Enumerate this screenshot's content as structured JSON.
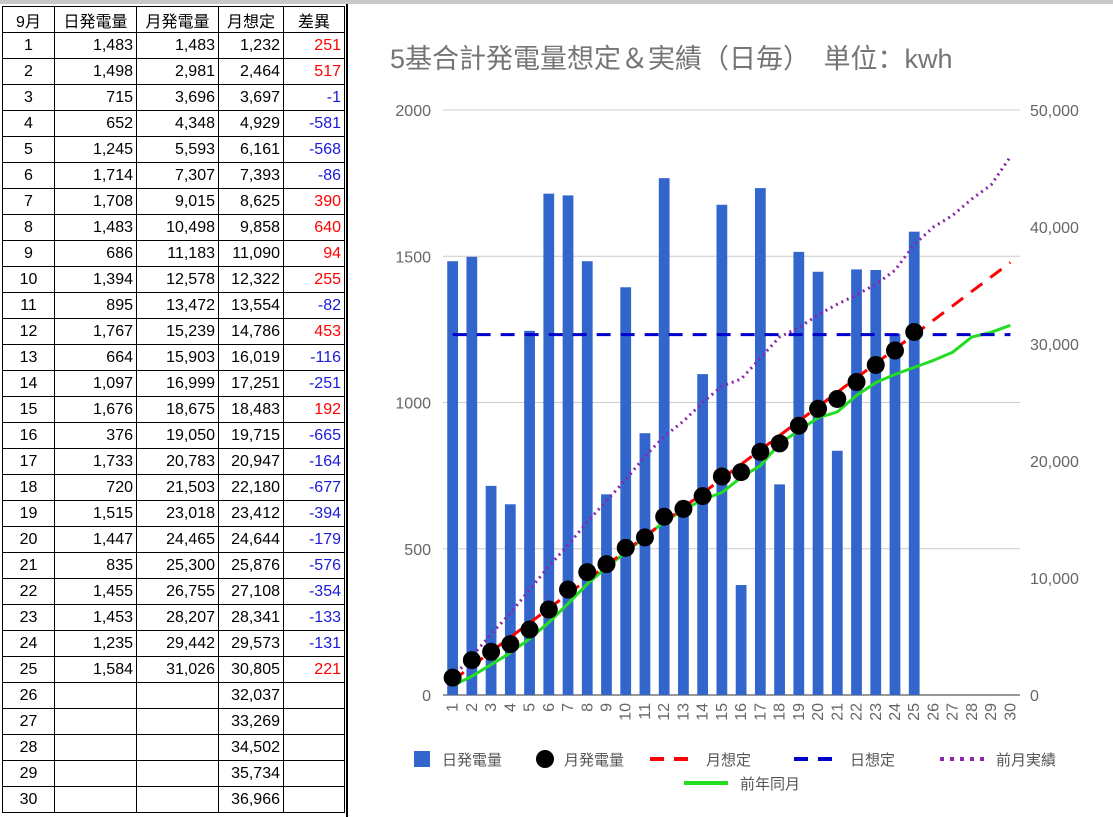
{
  "table": {
    "headers": [
      "9月",
      "日発電量",
      "月発電量",
      "月想定",
      "差異"
    ],
    "rows": [
      [
        "1",
        "1,483",
        "1,483",
        "1,232",
        "251"
      ],
      [
        "2",
        "1,498",
        "2,981",
        "2,464",
        "517"
      ],
      [
        "3",
        "715",
        "3,696",
        "3,697",
        "-1"
      ],
      [
        "4",
        "652",
        "4,348",
        "4,929",
        "-581"
      ],
      [
        "5",
        "1,245",
        "5,593",
        "6,161",
        "-568"
      ],
      [
        "6",
        "1,714",
        "7,307",
        "7,393",
        "-86"
      ],
      [
        "7",
        "1,708",
        "9,015",
        "8,625",
        "390"
      ],
      [
        "8",
        "1,483",
        "10,498",
        "9,858",
        "640"
      ],
      [
        "9",
        "686",
        "11,183",
        "11,090",
        "94"
      ],
      [
        "10",
        "1,394",
        "12,578",
        "12,322",
        "255"
      ],
      [
        "11",
        "895",
        "13,472",
        "13,554",
        "-82"
      ],
      [
        "12",
        "1,767",
        "15,239",
        "14,786",
        "453"
      ],
      [
        "13",
        "664",
        "15,903",
        "16,019",
        "-116"
      ],
      [
        "14",
        "1,097",
        "16,999",
        "17,251",
        "-251"
      ],
      [
        "15",
        "1,676",
        "18,675",
        "18,483",
        "192"
      ],
      [
        "16",
        "376",
        "19,050",
        "19,715",
        "-665"
      ],
      [
        "17",
        "1,733",
        "20,783",
        "20,947",
        "-164"
      ],
      [
        "18",
        "720",
        "21,503",
        "22,180",
        "-677"
      ],
      [
        "19",
        "1,515",
        "23,018",
        "23,412",
        "-394"
      ],
      [
        "20",
        "1,447",
        "24,465",
        "24,644",
        "-179"
      ],
      [
        "21",
        "835",
        "25,300",
        "25,876",
        "-576"
      ],
      [
        "22",
        "1,455",
        "26,755",
        "27,108",
        "-354"
      ],
      [
        "23",
        "1,453",
        "28,207",
        "28,341",
        "-133"
      ],
      [
        "24",
        "1,235",
        "29,442",
        "29,573",
        "-131"
      ],
      [
        "25",
        "1,584",
        "31,026",
        "30,805",
        "221"
      ],
      [
        "26",
        "",
        "",
        "32,037",
        ""
      ],
      [
        "27",
        "",
        "",
        "33,269",
        ""
      ],
      [
        "28",
        "",
        "",
        "34,502",
        ""
      ],
      [
        "29",
        "",
        "",
        "35,734",
        ""
      ],
      [
        "30",
        "",
        "",
        "36,966",
        ""
      ]
    ],
    "colors": {
      "positive": "#ff0000",
      "negative": "#1a1adb"
    }
  },
  "chart_data": {
    "type": "bar",
    "title": "5基合計発電量想定＆実績（日毎）　単位：kwh",
    "x": [
      1,
      2,
      3,
      4,
      5,
      6,
      7,
      8,
      9,
      10,
      11,
      12,
      13,
      14,
      15,
      16,
      17,
      18,
      19,
      20,
      21,
      22,
      23,
      24,
      25,
      26,
      27,
      28,
      29,
      30
    ],
    "left_axis": {
      "ylim": [
        0,
        2000
      ],
      "ticks": [
        "0",
        "500",
        "1000",
        "1500",
        "2000"
      ]
    },
    "right_axis": {
      "ylim": [
        0,
        50000
      ],
      "ticks": [
        "0",
        "10,000",
        "20,000",
        "30,000",
        "40,000",
        "50,000"
      ]
    },
    "grid": true,
    "legend_position": "bottom",
    "series": [
      {
        "name": "日発電量",
        "kind": "bar",
        "axis": "left",
        "color": "#3366cc",
        "values": [
          1483,
          1498,
          715,
          652,
          1245,
          1714,
          1708,
          1483,
          686,
          1394,
          895,
          1767,
          664,
          1097,
          1676,
          376,
          1733,
          720,
          1515,
          1447,
          835,
          1455,
          1453,
          1235,
          1584,
          null,
          null,
          null,
          null,
          null
        ]
      },
      {
        "name": "月発電量",
        "kind": "markers",
        "axis": "right",
        "color": "#000000",
        "values": [
          1483,
          2981,
          3696,
          4348,
          5593,
          7307,
          9015,
          10498,
          11183,
          12578,
          13472,
          15239,
          15903,
          16999,
          18675,
          19050,
          20783,
          21503,
          23018,
          24465,
          25300,
          26755,
          28207,
          29442,
          31026,
          null,
          null,
          null,
          null,
          null
        ]
      },
      {
        "name": "月想定",
        "kind": "dashed-line",
        "axis": "right",
        "color": "#ff0000",
        "values": [
          1232,
          2464,
          3697,
          4929,
          6161,
          7393,
          8625,
          9858,
          11090,
          12322,
          13554,
          14786,
          16019,
          17251,
          18483,
          19715,
          20947,
          22180,
          23412,
          24644,
          25876,
          27108,
          28341,
          29573,
          30805,
          32037,
          33269,
          34502,
          35734,
          36966
        ]
      },
      {
        "name": "日想定",
        "kind": "dashed-line",
        "axis": "left",
        "color": "#0000cc",
        "values": [
          1232,
          1232,
          1232,
          1232,
          1232,
          1232,
          1232,
          1232,
          1232,
          1232,
          1232,
          1232,
          1232,
          1232,
          1232,
          1232,
          1232,
          1232,
          1232,
          1232,
          1232,
          1232,
          1232,
          1232,
          1232,
          1232,
          1232,
          1232,
          1232,
          1232
        ]
      },
      {
        "name": "前月実績",
        "kind": "dotted-line",
        "axis": "right",
        "color": "#8e24aa",
        "values": [
          1500,
          3300,
          5200,
          7000,
          9000,
          11000,
          12800,
          14800,
          16600,
          18400,
          20400,
          22100,
          23400,
          25000,
          26400,
          27000,
          28800,
          30600,
          31400,
          32500,
          33400,
          34200,
          35100,
          36300,
          38500,
          40000,
          41000,
          42400,
          43600,
          46000
        ]
      },
      {
        "name": "前年同月",
        "kind": "line",
        "axis": "right",
        "color": "#22dd22",
        "values": [
          800,
          1600,
          2600,
          3600,
          4800,
          6200,
          7800,
          9500,
          10900,
          12200,
          13500,
          14800,
          15800,
          16700,
          17300,
          18600,
          19600,
          21500,
          22600,
          23700,
          24200,
          25600,
          26700,
          27400,
          28000,
          28600,
          29300,
          30600,
          31000,
          31600
        ]
      }
    ]
  }
}
